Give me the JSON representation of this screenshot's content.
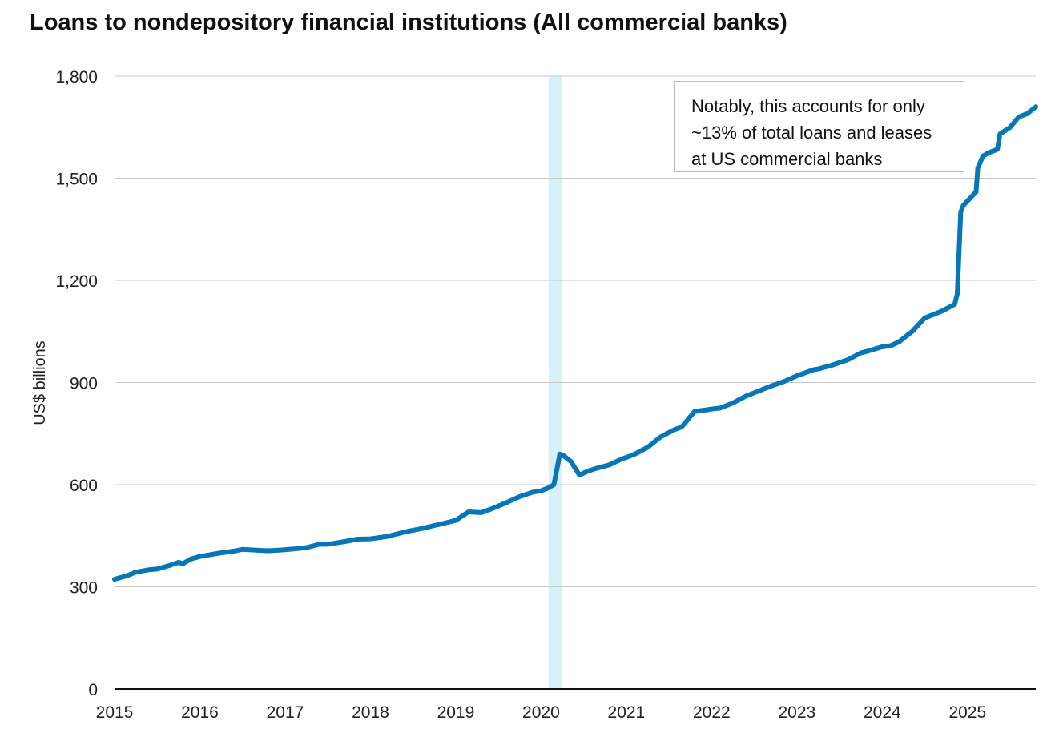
{
  "chart_data": {
    "type": "line",
    "title": "Loans to nondepository financial institutions (All commercial banks)",
    "xlabel": "",
    "ylabel": "US$ billions",
    "xlim": [
      2015.0,
      2025.8
    ],
    "ylim": [
      0,
      1800
    ],
    "yticks": [
      0,
      300,
      600,
      900,
      1200,
      1500,
      1800
    ],
    "ytick_labels": [
      "0",
      "300",
      "600",
      "900",
      "1,200",
      "1,500",
      "1,800"
    ],
    "xticks": [
      2015,
      2016,
      2017,
      2018,
      2019,
      2020,
      2021,
      2022,
      2023,
      2024,
      2025
    ],
    "xtick_labels": [
      "2015",
      "2016",
      "2017",
      "2018",
      "2019",
      "2020",
      "2021",
      "2022",
      "2023",
      "2024",
      "2025"
    ],
    "grid": "horizontal",
    "recession_band": [
      2020.09,
      2020.25
    ],
    "annotation_lines": [
      "Notably, this accounts for only",
      "~13% of total loans and leases",
      "at US commercial banks"
    ],
    "series": [
      {
        "name": "Loans to nondepository financial institutions",
        "color": "#0577b6",
        "x": [
          2015.0,
          2015.15,
          2015.25,
          2015.4,
          2015.5,
          2015.65,
          2015.75,
          2015.8,
          2015.9,
          2016.0,
          2016.2,
          2016.4,
          2016.5,
          2016.7,
          2016.8,
          2016.95,
          2017.1,
          2017.25,
          2017.4,
          2017.5,
          2017.7,
          2017.85,
          2018.0,
          2018.2,
          2018.4,
          2018.6,
          2018.75,
          2018.85,
          2019.0,
          2019.15,
          2019.3,
          2019.45,
          2019.6,
          2019.75,
          2019.9,
          2020.0,
          2020.08,
          2020.15,
          2020.19,
          2020.22,
          2020.26,
          2020.35,
          2020.45,
          2020.55,
          2020.65,
          2020.8,
          2020.95,
          2021.0,
          2021.1,
          2021.25,
          2021.4,
          2021.55,
          2021.65,
          2021.8,
          2021.95,
          2022.0,
          2022.1,
          2022.25,
          2022.4,
          2022.55,
          2022.7,
          2022.85,
          2023.0,
          2023.2,
          2023.25,
          2023.4,
          2023.6,
          2023.75,
          2023.8,
          2024.0,
          2024.1,
          2024.2,
          2024.35,
          2024.5,
          2024.7,
          2024.85,
          2024.88,
          2024.92,
          2024.95,
          2025.1,
          2025.12,
          2025.18,
          2025.25,
          2025.35,
          2025.38,
          2025.5,
          2025.6,
          2025.65,
          2025.7,
          2025.8
        ],
        "values": [
          322,
          333,
          343,
          350,
          352,
          363,
          372,
          368,
          382,
          389,
          398,
          405,
          410,
          407,
          406,
          408,
          411,
          415,
          425,
          425,
          433,
          440,
          441,
          448,
          461,
          471,
          480,
          486,
          495,
          520,
          518,
          532,
          548,
          565,
          578,
          582,
          590,
          600,
          650,
          690,
          686,
          668,
          628,
          640,
          648,
          658,
          676,
          680,
          690,
          710,
          740,
          760,
          770,
          815,
          820,
          822,
          825,
          840,
          860,
          875,
          890,
          903,
          920,
          938,
          940,
          950,
          967,
          987,
          990,
          1005,
          1008,
          1020,
          1050,
          1090,
          1110,
          1130,
          1160,
          1400,
          1420,
          1460,
          1530,
          1565,
          1575,
          1585,
          1630,
          1650,
          1680,
          1685,
          1690,
          1710
        ]
      }
    ]
  }
}
